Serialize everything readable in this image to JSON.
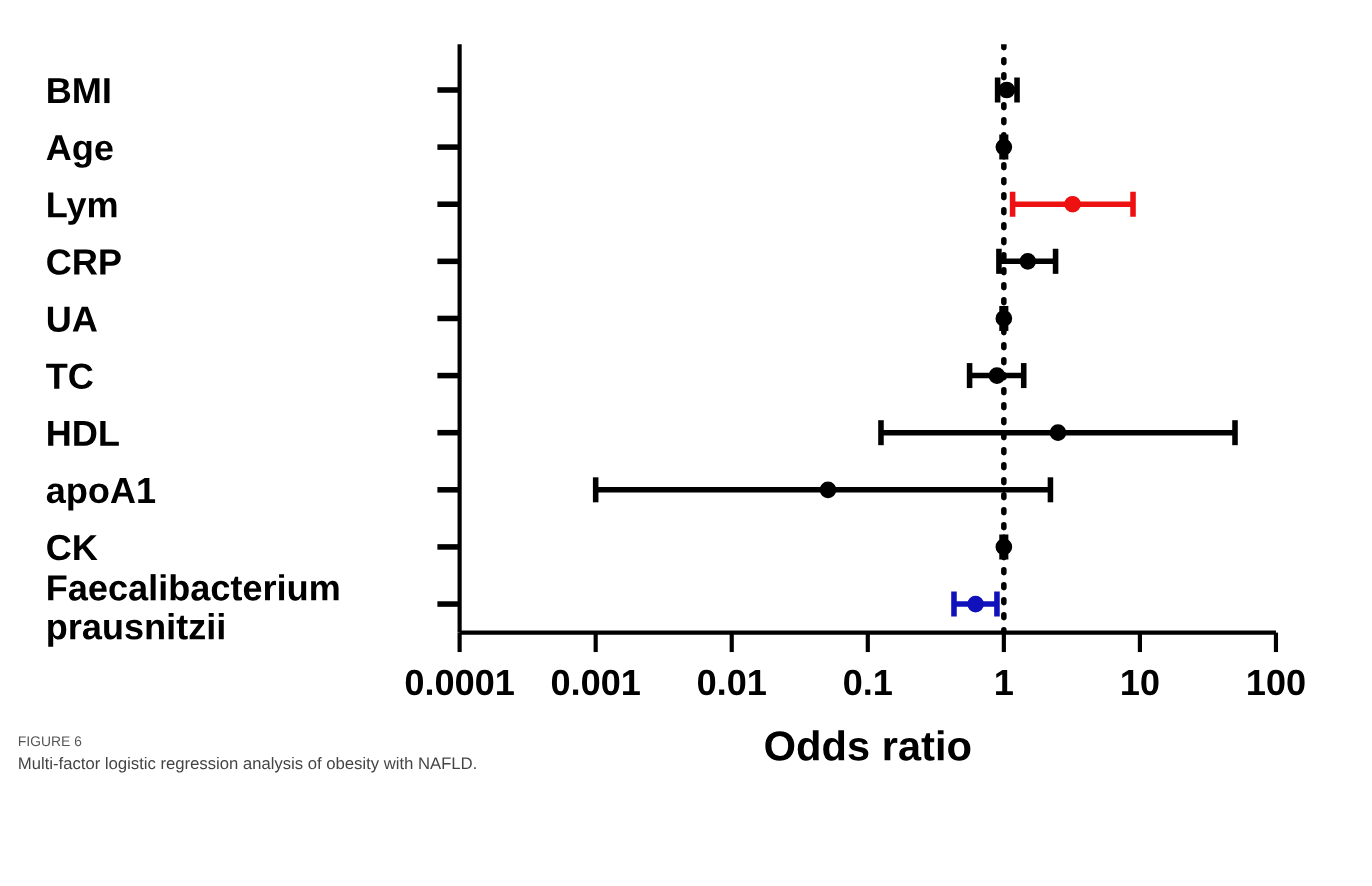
{
  "chart_data": {
    "type": "scatter",
    "orientation": "horizontal",
    "categories": [
      "BMI",
      "Age",
      "Lym",
      "CRP",
      "UA",
      "TC",
      "HDL",
      "apoA1",
      "CK",
      "Faecalibacterium\nprausnitzii"
    ],
    "values": [
      1.05,
      1.0,
      3.2,
      1.5,
      1.0,
      0.89,
      2.5,
      0.051,
      1.0,
      0.62
    ],
    "errors": [
      [
        0.9,
        1.25
      ],
      [
        0.97,
        1.03
      ],
      [
        1.16,
        8.9
      ],
      [
        0.92,
        2.4
      ],
      [
        0.97,
        1.03
      ],
      [
        0.56,
        1.4
      ],
      [
        0.125,
        50
      ],
      [
        0.001,
        2.2
      ],
      [
        0.97,
        1.03
      ],
      [
        0.43,
        0.89
      ]
    ],
    "colors": [
      "#000000",
      "#000000",
      "#ee1111",
      "#000000",
      "#000000",
      "#000000",
      "#000000",
      "#000000",
      "#000000",
      "#1111bb"
    ],
    "marker": "circle",
    "log": "x",
    "grid": false,
    "xlim": [
      0.0001,
      100
    ],
    "xticks": [
      0.0001,
      0.001,
      0.01,
      0.1,
      1,
      10,
      100
    ],
    "xlabel": "Odds ratio",
    "ref_lines": [
      {
        "axis": "x",
        "value": 1,
        "line_style": "dotted",
        "color": "#000000"
      }
    ],
    "annotations": [
      "FIGURE 6",
      "Multi-factor logistic regression analysis of obesity with NAFLD."
    ]
  }
}
